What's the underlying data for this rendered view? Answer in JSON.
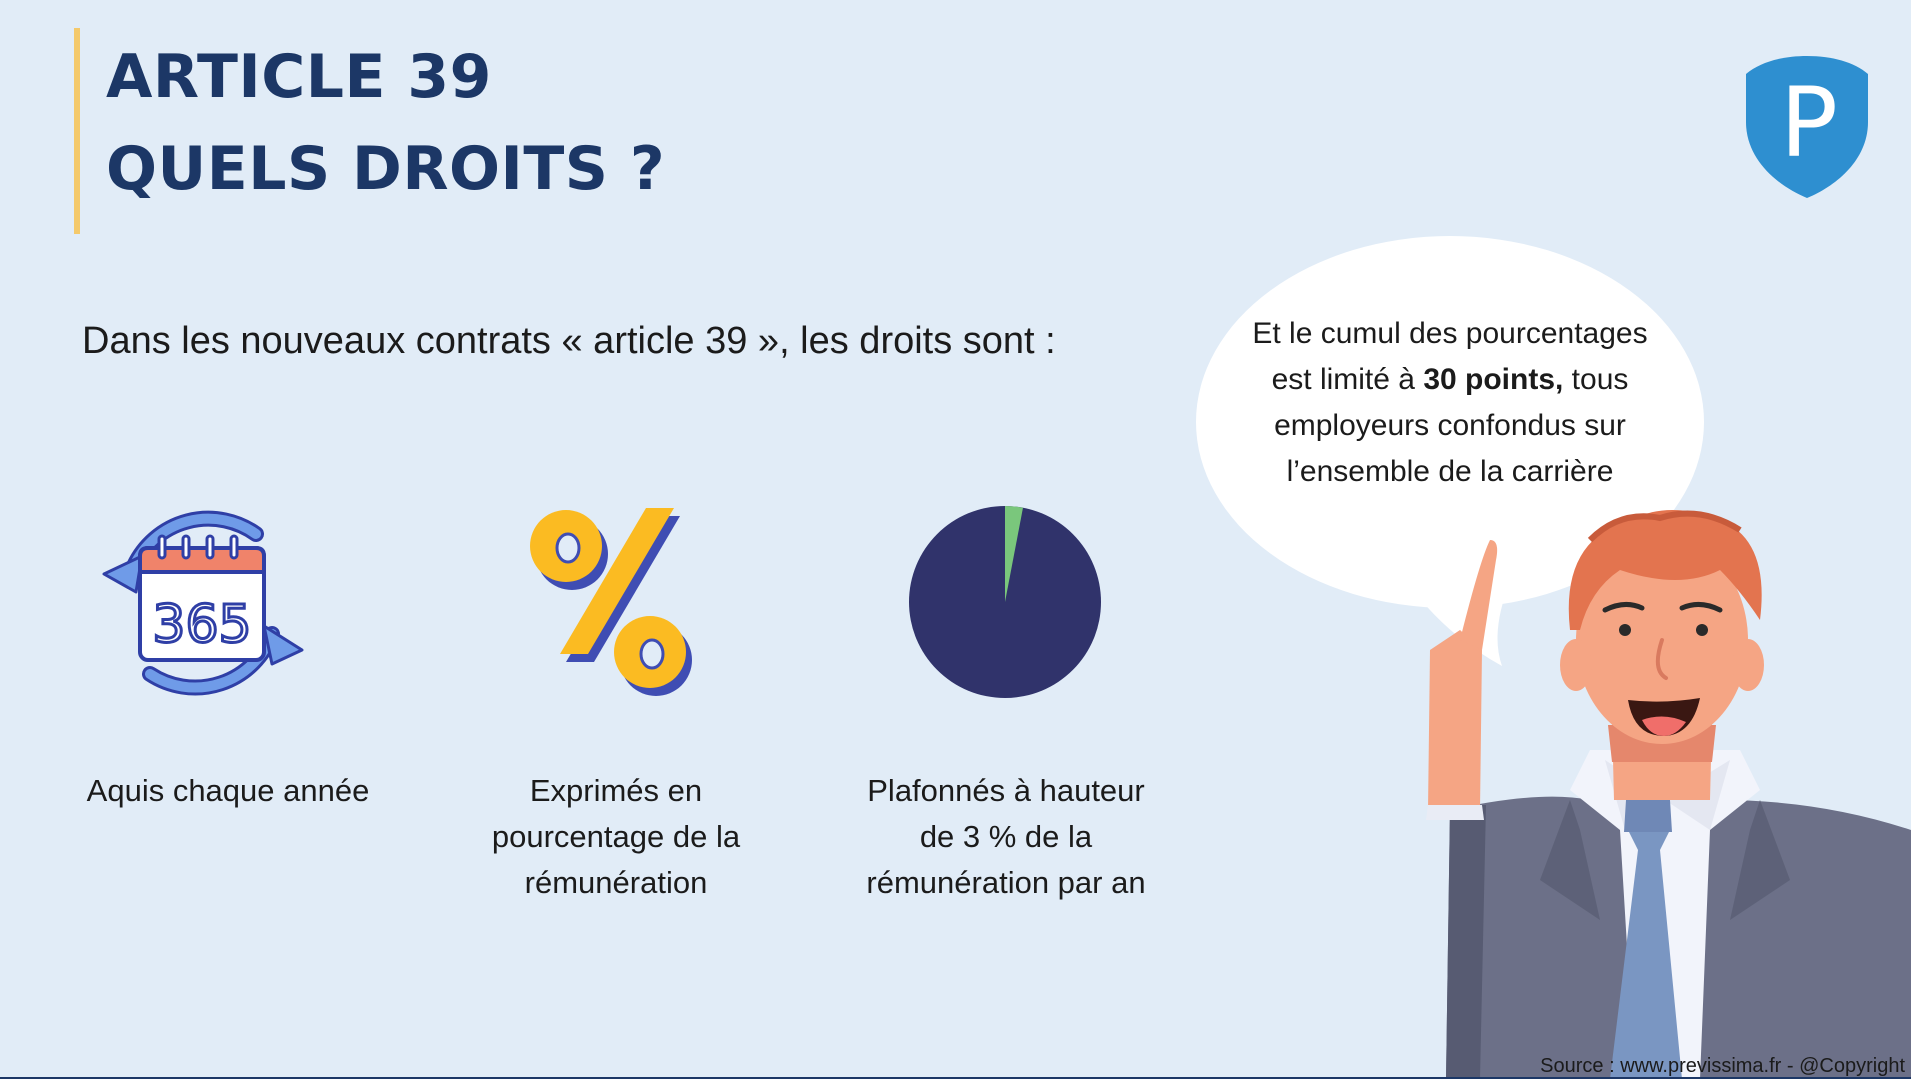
{
  "header": {
    "title_line1": "ARTICLE 39",
    "title_line2": "QUELS DROITS ?",
    "accent_color": "#f4c96b",
    "title_color": "#1c3766"
  },
  "logo": {
    "letter": "P",
    "color": "#2e8fd0"
  },
  "intro": "Dans les nouveaux contrats « article 39 », les droits sont :",
  "features": [
    {
      "icon": "calendar-365-icon",
      "calendar_text": "365",
      "caption": "Aquis chaque année"
    },
    {
      "icon": "percent-icon",
      "caption": "Exprimés en pourcentage de la rémunération"
    },
    {
      "icon": "pie-chart-icon",
      "caption": "Plafonnés à hauteur de 3 % de la rémunération par an",
      "pie_highlight_percent": 3,
      "pie_colors": {
        "main": "#30336b",
        "highlight": "#7ac77c"
      }
    }
  ],
  "speech_bubble": {
    "text_before": "Et le cumul des pourcentages est limité à ",
    "bold": "30 points,",
    "text_after": " tous employeurs confondus sur l’ensemble de la carrière"
  },
  "footer": {
    "source": "Source : www.previssima.fr - @Copyright"
  }
}
